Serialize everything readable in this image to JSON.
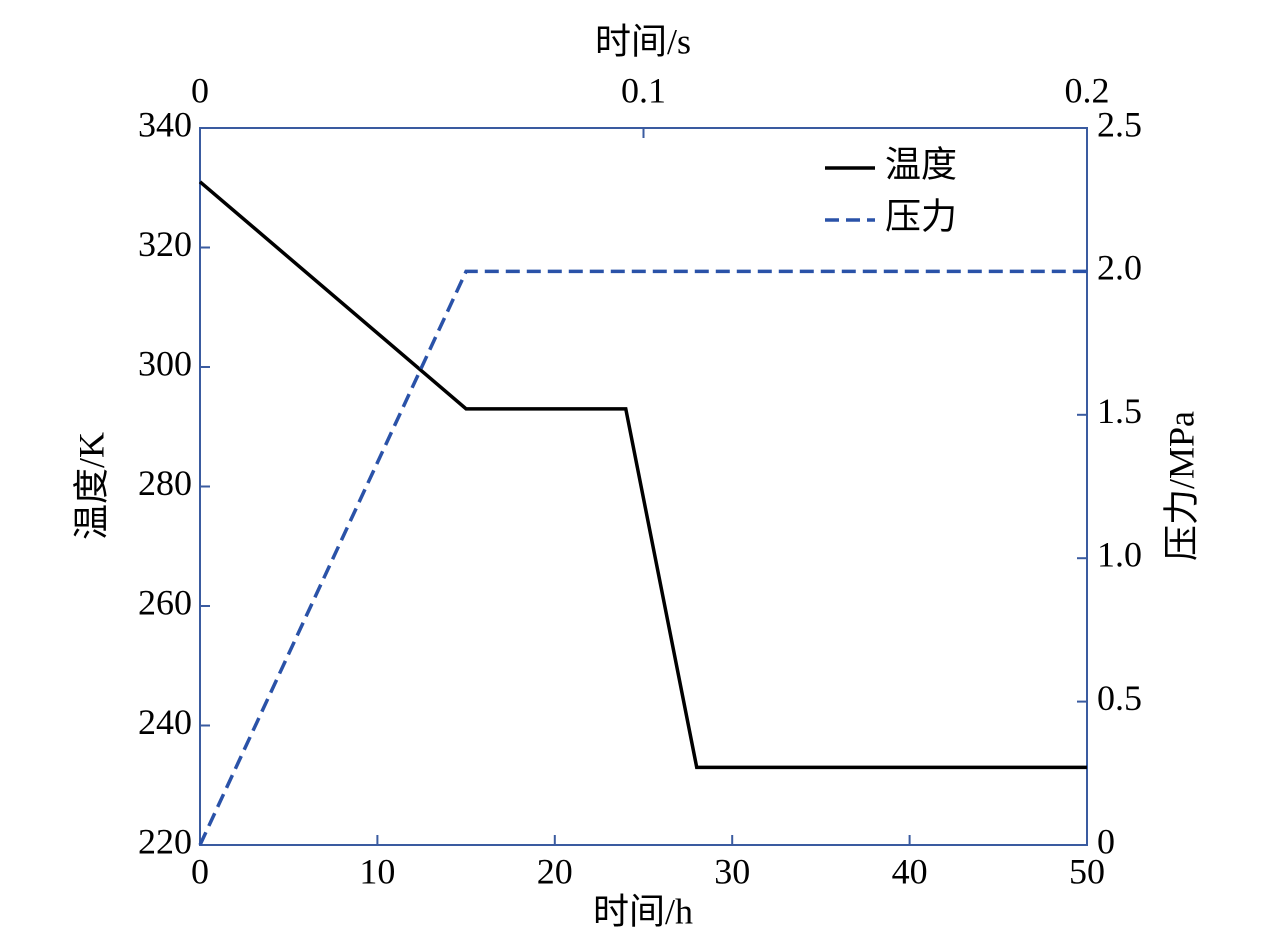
{
  "chart_data": {
    "type": "line",
    "x_label": "时间/h",
    "x2_label": "时间/s",
    "y_label": "温度/K",
    "y2_label": "压力/MPa",
    "x": [
      0,
      15,
      24,
      28,
      50
    ],
    "series": [
      {
        "name": "温度",
        "color": "#000000",
        "dash": "solid",
        "values": [
          331,
          293,
          293,
          233,
          233
        ]
      },
      {
        "name": "压力",
        "color": "#2a52a8",
        "dash": "dashed",
        "axis": "y2",
        "values": [
          0,
          2,
          2,
          2,
          2
        ]
      }
    ],
    "xlim": [
      0,
      50
    ],
    "xticks": [
      0,
      10,
      20,
      30,
      40,
      50
    ],
    "x2lim": [
      0,
      0.2
    ],
    "x2ticks": [
      0,
      0.1,
      0.2
    ],
    "ylim": [
      220,
      340
    ],
    "yticks": [
      220,
      240,
      260,
      280,
      300,
      320,
      340
    ],
    "y2lim": [
      0,
      2.5
    ],
    "y2ticks": [
      0,
      0.5,
      {
        "value": 1,
        "label": "1.0"
      },
      1.5,
      {
        "value": 2,
        "label": "2.0"
      },
      2.5
    ],
    "legend": "upper right",
    "axis_color": "#3a5ba0"
  }
}
